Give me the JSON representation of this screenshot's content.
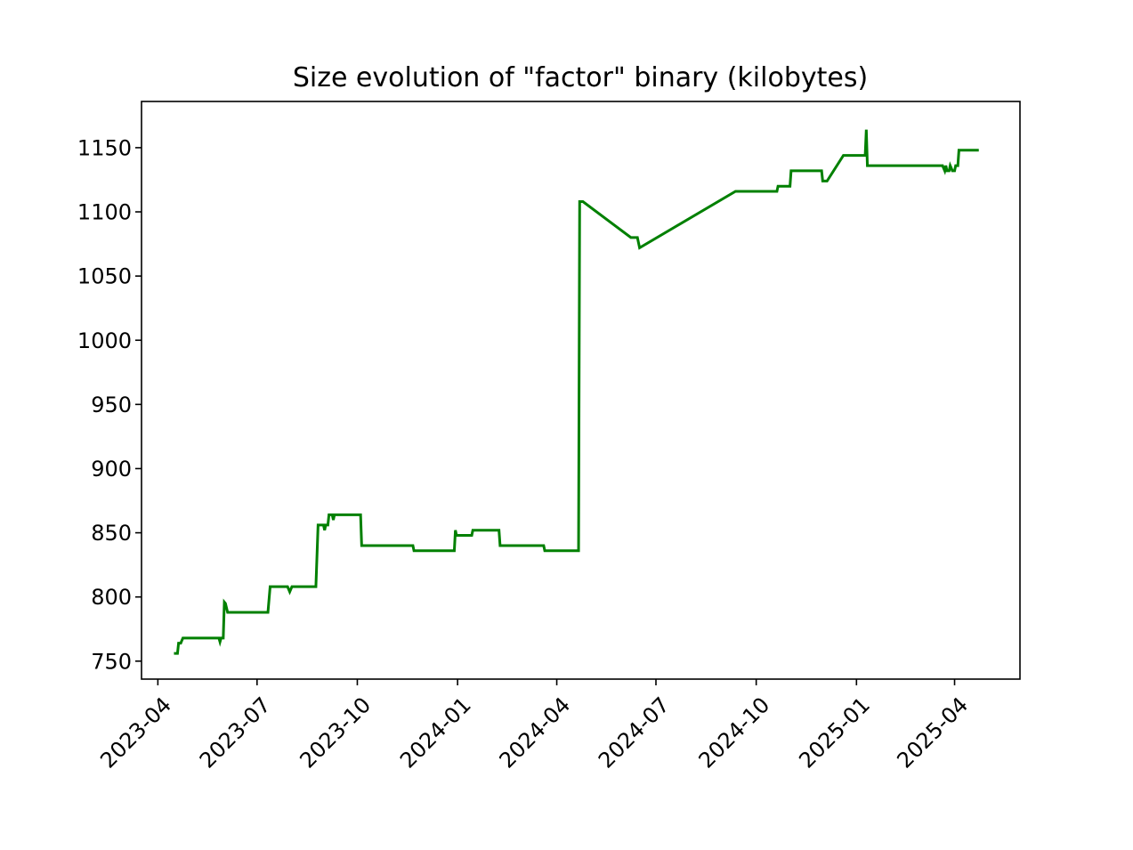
{
  "chart_data": {
    "type": "line",
    "title": "Size evolution of \"factor\" binary (kilobytes)",
    "xlabel": "",
    "ylabel": "",
    "x_axis": {
      "type": "date",
      "range": [
        "2023-03-17",
        "2025-05-31"
      ],
      "tick_values": [
        "2023-04-01",
        "2023-07-01",
        "2023-10-01",
        "2024-01-01",
        "2024-04-01",
        "2024-07-01",
        "2024-10-01",
        "2025-01-01",
        "2025-04-01"
      ],
      "tick_labels": [
        "2023-04",
        "2023-07",
        "2023-10",
        "2024-01",
        "2024-04",
        "2024-07",
        "2024-10",
        "2025-01",
        "2025-04"
      ]
    },
    "y_axis": {
      "range": [
        736,
        1186
      ],
      "tick_values": [
        750,
        800,
        850,
        900,
        950,
        1000,
        1050,
        1100,
        1150
      ],
      "tick_labels": [
        "750",
        "800",
        "850",
        "900",
        "950",
        "1000",
        "1050",
        "1100",
        "1150"
      ]
    },
    "grid": false,
    "legend": "none",
    "color": "#008000",
    "series": [
      {
        "points": [
          [
            "2023-04-17",
            756
          ],
          [
            "2023-04-19",
            756
          ],
          [
            "2023-04-20",
            764
          ],
          [
            "2023-04-22",
            764
          ],
          [
            "2023-04-24",
            768
          ],
          [
            "2023-05-27",
            768
          ],
          [
            "2023-05-28",
            765
          ],
          [
            "2023-05-29",
            768
          ],
          [
            "2023-05-31",
            768
          ],
          [
            "2023-06-01",
            796
          ],
          [
            "2023-06-02",
            795
          ],
          [
            "2023-06-04",
            788
          ],
          [
            "2023-07-11",
            788
          ],
          [
            "2023-07-13",
            808
          ],
          [
            "2023-07-29",
            808
          ],
          [
            "2023-07-31",
            804
          ],
          [
            "2023-08-02",
            808
          ],
          [
            "2023-08-24",
            808
          ],
          [
            "2023-08-26",
            856
          ],
          [
            "2023-08-31",
            856
          ],
          [
            "2023-09-01",
            852
          ],
          [
            "2023-09-02",
            856
          ],
          [
            "2023-09-04",
            856
          ],
          [
            "2023-09-05",
            864
          ],
          [
            "2023-09-08",
            864
          ],
          [
            "2023-09-09",
            860
          ],
          [
            "2023-09-10",
            864
          ],
          [
            "2023-10-04",
            864
          ],
          [
            "2023-10-05",
            840
          ],
          [
            "2023-11-21",
            840
          ],
          [
            "2023-11-22",
            836
          ],
          [
            "2023-12-29",
            836
          ],
          [
            "2023-12-30",
            852
          ],
          [
            "2023-12-31",
            848
          ],
          [
            "2024-01-14",
            848
          ],
          [
            "2024-01-15",
            852
          ],
          [
            "2024-02-08",
            852
          ],
          [
            "2024-02-09",
            840
          ],
          [
            "2024-03-20",
            840
          ],
          [
            "2024-03-21",
            836
          ],
          [
            "2024-04-21",
            836
          ],
          [
            "2024-04-22",
            1108
          ],
          [
            "2024-04-25",
            1108
          ],
          [
            "2024-06-08",
            1080
          ],
          [
            "2024-06-14",
            1080
          ],
          [
            "2024-06-16",
            1072
          ],
          [
            "2024-09-12",
            1116
          ],
          [
            "2024-10-20",
            1116
          ],
          [
            "2024-10-21",
            1120
          ],
          [
            "2024-11-01",
            1120
          ],
          [
            "2024-11-02",
            1132
          ],
          [
            "2024-11-30",
            1132
          ],
          [
            "2024-12-01",
            1124
          ],
          [
            "2024-12-05",
            1124
          ],
          [
            "2024-12-20",
            1144
          ],
          [
            "2025-01-09",
            1144
          ],
          [
            "2025-01-10",
            1164
          ],
          [
            "2025-01-11",
            1136
          ],
          [
            "2025-03-21",
            1136
          ],
          [
            "2025-03-23",
            1132
          ],
          [
            "2025-03-24",
            1136
          ],
          [
            "2025-03-25",
            1132
          ],
          [
            "2025-03-27",
            1132
          ],
          [
            "2025-03-28",
            1136
          ],
          [
            "2025-03-30",
            1132
          ],
          [
            "2025-04-01",
            1132
          ],
          [
            "2025-04-02",
            1136
          ],
          [
            "2025-04-04",
            1136
          ],
          [
            "2025-04-05",
            1148
          ],
          [
            "2025-04-22",
            1148
          ]
        ]
      }
    ]
  }
}
